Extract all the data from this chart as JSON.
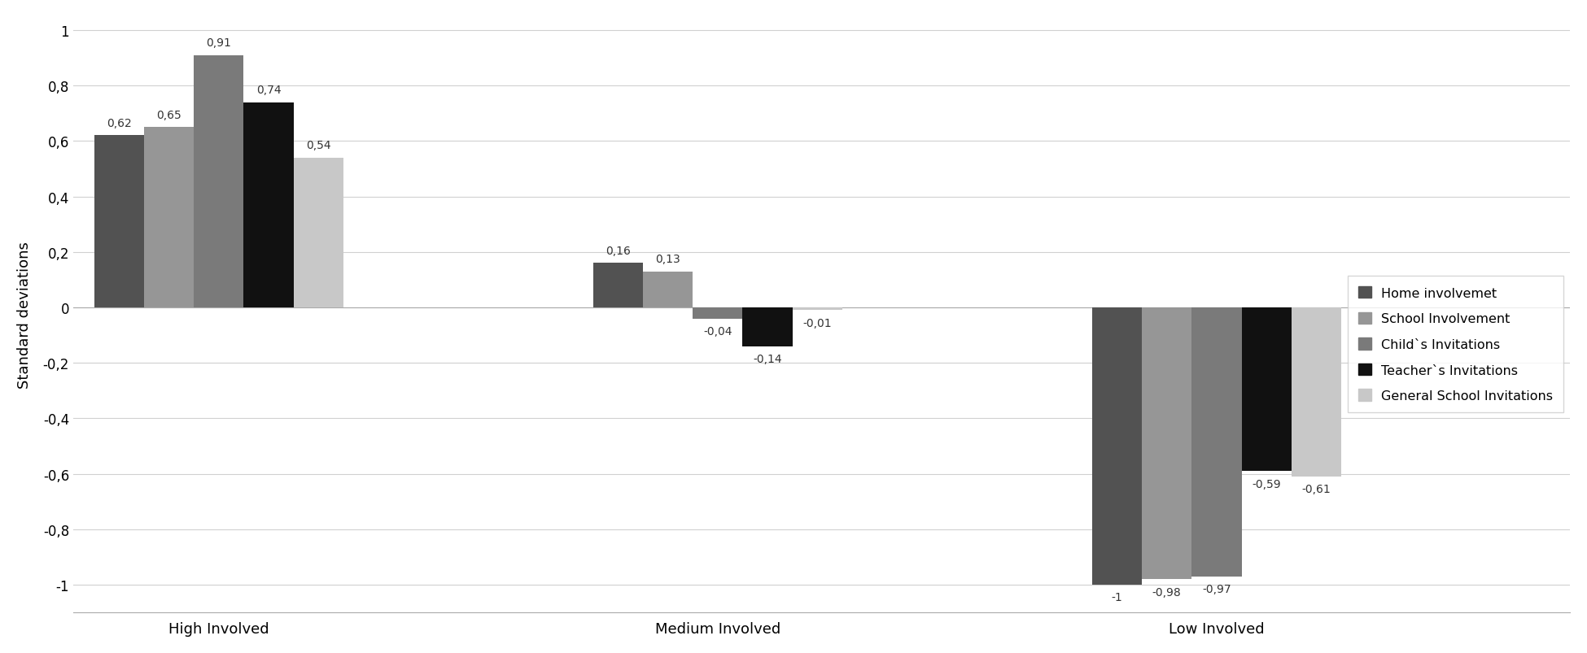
{
  "categories": [
    "High Involved",
    "Medium Involved",
    "Low Involved"
  ],
  "series": [
    {
      "name": "Home involvemet",
      "values": [
        0.62,
        0.16,
        -1.0
      ],
      "color": "#525252"
    },
    {
      "name": "School Involvement",
      "values": [
        0.65,
        0.13,
        -0.98
      ],
      "color": "#969696"
    },
    {
      "name": "Child`s Invitations",
      "values": [
        0.91,
        -0.04,
        -0.97
      ],
      "color": "#7a7a7a"
    },
    {
      "name": "Teacher`s Invitations",
      "values": [
        0.74,
        -0.14,
        -0.59
      ],
      "color": "#111111"
    },
    {
      "name": "General School Invitations",
      "values": [
        0.54,
        -0.01,
        -0.61
      ],
      "color": "#c8c8c8"
    }
  ],
  "ylabel": "Standard deviations",
  "ylim": [
    -1.1,
    1.05
  ],
  "yticks": [
    -1,
    -0.8,
    -0.6,
    -0.4,
    -0.2,
    0,
    0.2,
    0.4,
    0.6,
    0.8,
    1
  ],
  "ytick_labels": [
    "-1",
    "-0,8",
    "-0,6",
    "-0,4",
    "-0,2",
    "0",
    "0,2",
    "0,4",
    "0,6",
    "0,8",
    "1"
  ],
  "background_color": "#ffffff",
  "grid_color": "#d0d0d0",
  "bar_width": 0.12,
  "group_positions": [
    0.35,
    1.55,
    2.75
  ],
  "xlim": [
    0.0,
    3.6
  ]
}
